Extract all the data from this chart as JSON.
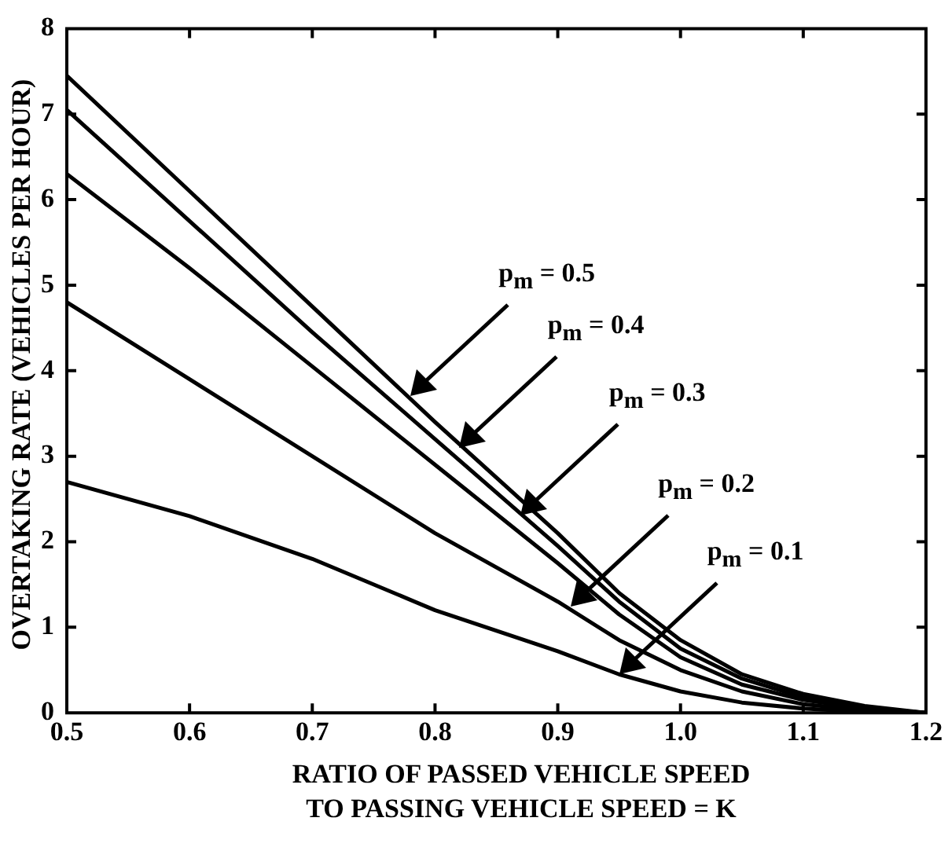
{
  "chart_data": {
    "type": "line",
    "xlabel": "RATIO OF PASSED VEHICLE SPEED\nTO PASSING VEHICLE SPEED = K",
    "ylabel": "OVERTAKING RATE (VEHICLES PER HOUR)",
    "x": [
      0.5,
      0.6,
      0.7,
      0.8,
      0.9,
      0.95,
      1.0,
      1.05,
      1.1,
      1.15,
      1.2
    ],
    "series": [
      {
        "color": "#000000",
        "values": [
          7.45,
          6.1,
          4.75,
          3.4,
          2.1,
          1.4,
          0.85,
          0.45,
          0.22,
          0.08,
          0
        ]
      },
      {
        "color": "#000000",
        "values": [
          7.05,
          5.75,
          4.45,
          3.2,
          1.95,
          1.3,
          0.75,
          0.4,
          0.18,
          0.06,
          0
        ]
      },
      {
        "color": "#000000",
        "values": [
          6.3,
          5.2,
          4.05,
          2.9,
          1.75,
          1.15,
          0.65,
          0.33,
          0.15,
          0.05,
          0
        ]
      },
      {
        "color": "#000000",
        "values": [
          4.8,
          3.9,
          3.0,
          2.1,
          1.3,
          0.85,
          0.5,
          0.25,
          0.1,
          0.03,
          0
        ]
      },
      {
        "color": "#000000",
        "values": [
          2.7,
          2.3,
          1.8,
          1.2,
          0.72,
          0.45,
          0.25,
          0.12,
          0.05,
          0.01,
          0
        ]
      }
    ],
    "annotations": [
      {
        "text": "p$_{m}$ = 0.5",
        "x": 0.78,
        "y": 3.7
      },
      {
        "text": "p$_{m}$ = 0.4",
        "x": 0.82,
        "y": 3.1
      },
      {
        "text": "p$_{m}$ = 0.3",
        "x": 0.87,
        "y": 2.3
      },
      {
        "text": "p$_{m}$ = 0.2",
        "x": 0.91,
        "y": 1.25
      },
      {
        "text": "p$_{m}$ = 0.1",
        "x": 0.95,
        "y": 0.45
      }
    ],
    "xlim": [
      0.5,
      1.2
    ],
    "xticks": [
      {
        "value": 0.5,
        "label": "0.5"
      },
      {
        "value": 0.6,
        "label": "0.6"
      },
      {
        "value": 0.7,
        "label": "0.7"
      },
      {
        "value": 0.8,
        "label": "0.8"
      },
      {
        "value": 0.9,
        "label": "0.9"
      },
      {
        "value": 1.0,
        "label": "1.0"
      },
      {
        "value": 1.1,
        "label": "1.1"
      },
      {
        "value": 1.2,
        "label": "1.2"
      }
    ],
    "ylim": [
      0,
      8
    ],
    "yticks": [
      0,
      1,
      2,
      3,
      4,
      5,
      6,
      7,
      8
    ],
    "grid": false,
    "legend": false,
    "marker": "none",
    "line_style": "solid"
  }
}
